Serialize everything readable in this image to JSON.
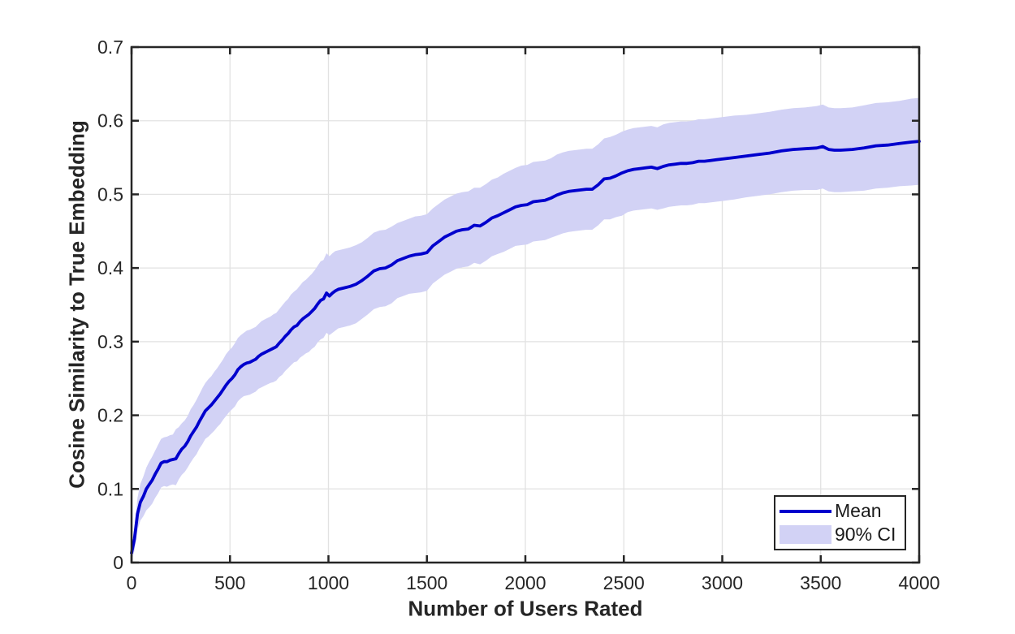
{
  "styles": {
    "background": "#ffffff",
    "axis_color": "#262626",
    "grid_color": "#e2e2e2",
    "tick_label_color": "#262626",
    "mean_line_color": "#0000cd",
    "band_color": "#d2d2f5"
  },
  "chart_data": {
    "type": "line",
    "title": "",
    "xlabel": "Number of Users Rated",
    "ylabel": "Cosine Similarity to True Embedding",
    "xlim": [
      0,
      4000
    ],
    "ylim": [
      0,
      0.7
    ],
    "xticks": [
      0,
      500,
      1000,
      1500,
      2000,
      2500,
      3000,
      3500,
      4000
    ],
    "yticks": [
      0,
      0.1,
      0.2,
      0.3,
      0.4,
      0.5,
      0.6,
      0.7
    ],
    "grid": true,
    "legend": {
      "position": "southeast",
      "entries": [
        {
          "label": "Mean",
          "type": "line",
          "color": "#0000cd"
        },
        {
          "label": "90% CI",
          "type": "patch",
          "color": "#d2d2f5"
        }
      ]
    },
    "series": [
      {
        "name": "Mean",
        "type": "line",
        "color": "#0000cd",
        "width": 3.8
      },
      {
        "name": "90% CI",
        "type": "band",
        "color": "#d2d2f5"
      }
    ],
    "points_format": [
      "x",
      "mean",
      "ci_lo",
      "ci_hi"
    ],
    "points": [
      [
        0,
        0.013,
        0.003,
        0.023
      ],
      [
        15,
        0.032,
        0.016,
        0.048
      ],
      [
        30,
        0.066,
        0.044,
        0.088
      ],
      [
        45,
        0.082,
        0.057,
        0.107
      ],
      [
        60,
        0.09,
        0.063,
        0.117
      ],
      [
        75,
        0.1,
        0.071,
        0.129
      ],
      [
        90,
        0.106,
        0.075,
        0.137
      ],
      [
        105,
        0.112,
        0.08,
        0.144
      ],
      [
        120,
        0.12,
        0.088,
        0.152
      ],
      [
        135,
        0.127,
        0.094,
        0.16
      ],
      [
        150,
        0.135,
        0.102,
        0.168
      ],
      [
        165,
        0.137,
        0.104,
        0.17
      ],
      [
        180,
        0.137,
        0.103,
        0.171
      ],
      [
        195,
        0.139,
        0.105,
        0.173
      ],
      [
        210,
        0.14,
        0.106,
        0.174
      ],
      [
        225,
        0.141,
        0.105,
        0.181
      ],
      [
        240,
        0.148,
        0.113,
        0.184
      ],
      [
        255,
        0.154,
        0.119,
        0.189
      ],
      [
        270,
        0.158,
        0.123,
        0.193
      ],
      [
        285,
        0.164,
        0.129,
        0.199
      ],
      [
        300,
        0.172,
        0.136,
        0.208
      ],
      [
        315,
        0.178,
        0.142,
        0.214
      ],
      [
        330,
        0.184,
        0.147,
        0.221
      ],
      [
        345,
        0.192,
        0.155,
        0.229
      ],
      [
        360,
        0.199,
        0.161,
        0.237
      ],
      [
        375,
        0.206,
        0.168,
        0.244
      ],
      [
        390,
        0.21,
        0.171,
        0.249
      ],
      [
        405,
        0.214,
        0.175,
        0.253
      ],
      [
        420,
        0.219,
        0.179,
        0.259
      ],
      [
        435,
        0.224,
        0.184,
        0.264
      ],
      [
        450,
        0.229,
        0.188,
        0.27
      ],
      [
        465,
        0.235,
        0.194,
        0.276
      ],
      [
        480,
        0.241,
        0.199,
        0.283
      ],
      [
        495,
        0.246,
        0.204,
        0.288
      ],
      [
        510,
        0.25,
        0.208,
        0.292
      ],
      [
        525,
        0.255,
        0.212,
        0.298
      ],
      [
        540,
        0.262,
        0.219,
        0.305
      ],
      [
        555,
        0.266,
        0.223,
        0.309
      ],
      [
        570,
        0.269,
        0.226,
        0.312
      ],
      [
        585,
        0.271,
        0.227,
        0.315
      ],
      [
        600,
        0.272,
        0.228,
        0.316
      ],
      [
        615,
        0.274,
        0.23,
        0.318
      ],
      [
        630,
        0.276,
        0.232,
        0.32
      ],
      [
        645,
        0.28,
        0.236,
        0.324
      ],
      [
        660,
        0.283,
        0.238,
        0.328
      ],
      [
        675,
        0.285,
        0.24,
        0.33
      ],
      [
        690,
        0.287,
        0.242,
        0.332
      ],
      [
        705,
        0.289,
        0.244,
        0.334
      ],
      [
        720,
        0.291,
        0.245,
        0.337
      ],
      [
        735,
        0.293,
        0.247,
        0.339
      ],
      [
        750,
        0.298,
        0.252,
        0.344
      ],
      [
        765,
        0.302,
        0.255,
        0.349
      ],
      [
        780,
        0.307,
        0.26,
        0.354
      ],
      [
        795,
        0.311,
        0.264,
        0.358
      ],
      [
        810,
        0.316,
        0.268,
        0.364
      ],
      [
        825,
        0.32,
        0.272,
        0.368
      ],
      [
        840,
        0.322,
        0.273,
        0.371
      ],
      [
        855,
        0.327,
        0.278,
        0.376
      ],
      [
        870,
        0.331,
        0.281,
        0.381
      ],
      [
        885,
        0.334,
        0.284,
        0.384
      ],
      [
        900,
        0.337,
        0.286,
        0.388
      ],
      [
        915,
        0.341,
        0.29,
        0.392
      ],
      [
        930,
        0.345,
        0.293,
        0.397
      ],
      [
        945,
        0.351,
        0.299,
        0.403
      ],
      [
        960,
        0.356,
        0.303,
        0.409
      ],
      [
        975,
        0.358,
        0.305,
        0.411
      ],
      [
        990,
        0.366,
        0.312,
        0.42
      ],
      [
        1005,
        0.362,
        0.309,
        0.416
      ],
      [
        1020,
        0.366,
        0.312,
        0.42
      ],
      [
        1035,
        0.369,
        0.315,
        0.423
      ],
      [
        1050,
        0.371,
        0.318,
        0.424
      ],
      [
        1080,
        0.373,
        0.32,
        0.426
      ],
      [
        1110,
        0.375,
        0.322,
        0.428
      ],
      [
        1140,
        0.378,
        0.325,
        0.431
      ],
      [
        1170,
        0.383,
        0.331,
        0.435
      ],
      [
        1200,
        0.389,
        0.337,
        0.441
      ],
      [
        1230,
        0.396,
        0.344,
        0.448
      ],
      [
        1260,
        0.399,
        0.347,
        0.451
      ],
      [
        1290,
        0.4,
        0.348,
        0.452
      ],
      [
        1320,
        0.404,
        0.352,
        0.456
      ],
      [
        1350,
        0.41,
        0.359,
        0.461
      ],
      [
        1380,
        0.413,
        0.362,
        0.464
      ],
      [
        1410,
        0.416,
        0.365,
        0.467
      ],
      [
        1440,
        0.418,
        0.366,
        0.47
      ],
      [
        1470,
        0.419,
        0.367,
        0.471
      ],
      [
        1500,
        0.421,
        0.369,
        0.473
      ],
      [
        1530,
        0.43,
        0.379,
        0.481
      ],
      [
        1560,
        0.436,
        0.385,
        0.487
      ],
      [
        1590,
        0.442,
        0.391,
        0.493
      ],
      [
        1620,
        0.446,
        0.395,
        0.497
      ],
      [
        1650,
        0.45,
        0.399,
        0.501
      ],
      [
        1680,
        0.452,
        0.401,
        0.503
      ],
      [
        1710,
        0.453,
        0.402,
        0.504
      ],
      [
        1740,
        0.458,
        0.407,
        0.509
      ],
      [
        1770,
        0.457,
        0.405,
        0.509
      ],
      [
        1800,
        0.462,
        0.41,
        0.514
      ],
      [
        1830,
        0.468,
        0.416,
        0.52
      ],
      [
        1860,
        0.471,
        0.419,
        0.523
      ],
      [
        1890,
        0.475,
        0.422,
        0.528
      ],
      [
        1920,
        0.479,
        0.426,
        0.532
      ],
      [
        1950,
        0.483,
        0.43,
        0.536
      ],
      [
        1980,
        0.485,
        0.431,
        0.539
      ],
      [
        2010,
        0.486,
        0.432,
        0.54
      ],
      [
        2040,
        0.49,
        0.436,
        0.544
      ],
      [
        2070,
        0.491,
        0.437,
        0.545
      ],
      [
        2100,
        0.492,
        0.438,
        0.546
      ],
      [
        2130,
        0.495,
        0.441,
        0.549
      ],
      [
        2160,
        0.499,
        0.444,
        0.554
      ],
      [
        2190,
        0.502,
        0.447,
        0.557
      ],
      [
        2220,
        0.504,
        0.449,
        0.559
      ],
      [
        2250,
        0.505,
        0.45,
        0.56
      ],
      [
        2280,
        0.506,
        0.451,
        0.561
      ],
      [
        2310,
        0.507,
        0.452,
        0.562
      ],
      [
        2340,
        0.507,
        0.452,
        0.562
      ],
      [
        2370,
        0.513,
        0.458,
        0.568
      ],
      [
        2400,
        0.521,
        0.466,
        0.576
      ],
      [
        2430,
        0.522,
        0.466,
        0.578
      ],
      [
        2460,
        0.525,
        0.469,
        0.581
      ],
      [
        2490,
        0.529,
        0.471,
        0.585
      ],
      [
        2520,
        0.532,
        0.476,
        0.588
      ],
      [
        2550,
        0.534,
        0.478,
        0.59
      ],
      [
        2580,
        0.535,
        0.479,
        0.591
      ],
      [
        2610,
        0.536,
        0.48,
        0.592
      ],
      [
        2640,
        0.537,
        0.481,
        0.593
      ],
      [
        2670,
        0.535,
        0.479,
        0.591
      ],
      [
        2700,
        0.538,
        0.481,
        0.595
      ],
      [
        2730,
        0.54,
        0.483,
        0.597
      ],
      [
        2760,
        0.541,
        0.484,
        0.598
      ],
      [
        2790,
        0.542,
        0.485,
        0.599
      ],
      [
        2820,
        0.542,
        0.485,
        0.599
      ],
      [
        2850,
        0.543,
        0.486,
        0.6
      ],
      [
        2880,
        0.545,
        0.488,
        0.602
      ],
      [
        2910,
        0.545,
        0.488,
        0.602
      ],
      [
        2940,
        0.546,
        0.489,
        0.603
      ],
      [
        2970,
        0.547,
        0.49,
        0.604
      ],
      [
        3000,
        0.548,
        0.491,
        0.605
      ],
      [
        3060,
        0.55,
        0.493,
        0.607
      ],
      [
        3120,
        0.552,
        0.496,
        0.608
      ],
      [
        3180,
        0.554,
        0.498,
        0.61
      ],
      [
        3240,
        0.556,
        0.5,
        0.612
      ],
      [
        3300,
        0.559,
        0.503,
        0.615
      ],
      [
        3360,
        0.561,
        0.505,
        0.617
      ],
      [
        3420,
        0.562,
        0.506,
        0.618
      ],
      [
        3480,
        0.563,
        0.506,
        0.62
      ],
      [
        3510,
        0.565,
        0.508,
        0.622
      ],
      [
        3540,
        0.561,
        0.504,
        0.618
      ],
      [
        3570,
        0.56,
        0.503,
        0.617
      ],
      [
        3600,
        0.56,
        0.503,
        0.617
      ],
      [
        3660,
        0.561,
        0.504,
        0.618
      ],
      [
        3720,
        0.563,
        0.505,
        0.621
      ],
      [
        3780,
        0.566,
        0.508,
        0.624
      ],
      [
        3840,
        0.567,
        0.509,
        0.625
      ],
      [
        3900,
        0.569,
        0.511,
        0.627
      ],
      [
        3960,
        0.571,
        0.512,
        0.63
      ],
      [
        4000,
        0.572,
        0.513,
        0.631
      ]
    ]
  }
}
